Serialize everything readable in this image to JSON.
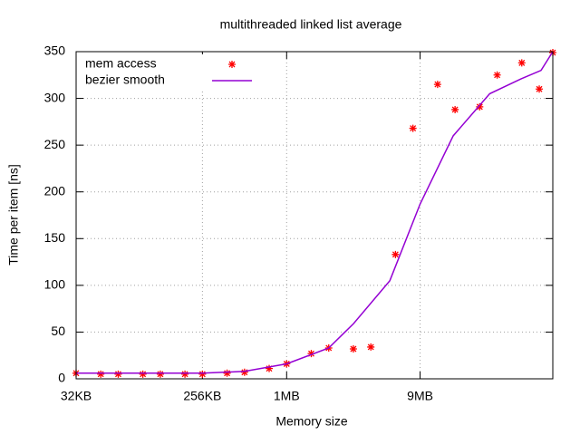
{
  "chart_data": {
    "type": "line",
    "title": "multithreaded linked list average",
    "x_label": "Memory size",
    "y_label": "Time per item [ns]",
    "xscale": "log",
    "grid": true,
    "legend": "top-left",
    "xlim": [
      32,
      81920
    ],
    "ylim": [
      0,
      350
    ],
    "xticks": [
      {
        "value": 32,
        "label": "32KB"
      },
      {
        "value": 256,
        "label": "256KB"
      },
      {
        "value": 1024,
        "label": "1MB"
      },
      {
        "value": 9216,
        "label": "9MB"
      }
    ],
    "yticks": [
      0,
      50,
      100,
      150,
      200,
      250,
      300,
      350
    ],
    "series": [
      {
        "name": "mem access",
        "color": "#ff0000",
        "style": "points",
        "x": [
          32,
          48,
          64,
          96,
          128,
          192,
          256,
          384,
          512,
          768,
          1024,
          1536,
          2048,
          3072,
          4096,
          6144,
          8192,
          12288,
          16384,
          24576,
          32768,
          49152,
          65536,
          81920
        ],
        "values": [
          6,
          5,
          5,
          5,
          5,
          5,
          5,
          6,
          7,
          11,
          16,
          27,
          33,
          32,
          34,
          133,
          268,
          315,
          288,
          291,
          325,
          338,
          310,
          349
        ]
      },
      {
        "name": "bezier smooth",
        "color": "#9400d3",
        "style": "line",
        "x": [
          32,
          256,
          512,
          1024,
          2048,
          3080,
          5600,
          9216,
          15900,
          29000,
          48700,
          67500,
          81920
        ],
        "values": [
          6,
          6,
          8,
          16,
          33,
          59,
          105,
          187,
          260,
          305,
          321,
          330,
          350
        ]
      }
    ]
  }
}
